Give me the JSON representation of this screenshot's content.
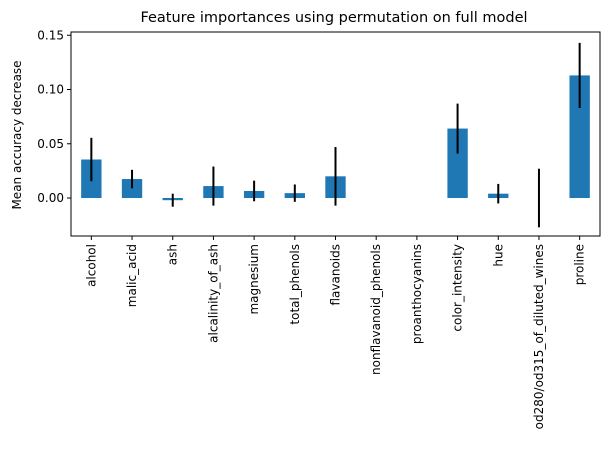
{
  "chart_data": {
    "type": "bar",
    "title": "Feature importances using permutation on full model",
    "xlabel": "",
    "ylabel": "Mean accuracy decrease",
    "ylim": [
      -0.035,
      0.153
    ],
    "yticks": [
      0.0,
      0.05,
      0.1,
      0.15
    ],
    "ytick_labels": [
      "0.00",
      "0.05",
      "0.10",
      "0.15"
    ],
    "grid": false,
    "bar_color": "#1f77b4",
    "error_color": "#000000",
    "categories": [
      "alcohol",
      "malic_acid",
      "ash",
      "alcalinity_of_ash",
      "magnesium",
      "total_phenols",
      "flavanoids",
      "nonflavanoid_phenols",
      "proanthocyanins",
      "color_intensity",
      "hue",
      "od280/od315_of_diluted_wines",
      "proline"
    ],
    "values": [
      0.0355,
      0.0175,
      -0.002,
      0.011,
      0.0065,
      0.0045,
      0.02,
      0.0,
      0.0,
      0.064,
      0.004,
      0.0,
      0.113
    ],
    "errors": [
      0.02,
      0.0085,
      0.006,
      0.018,
      0.0095,
      0.008,
      0.027,
      0.0,
      0.0,
      0.023,
      0.009,
      0.027,
      0.03
    ]
  }
}
